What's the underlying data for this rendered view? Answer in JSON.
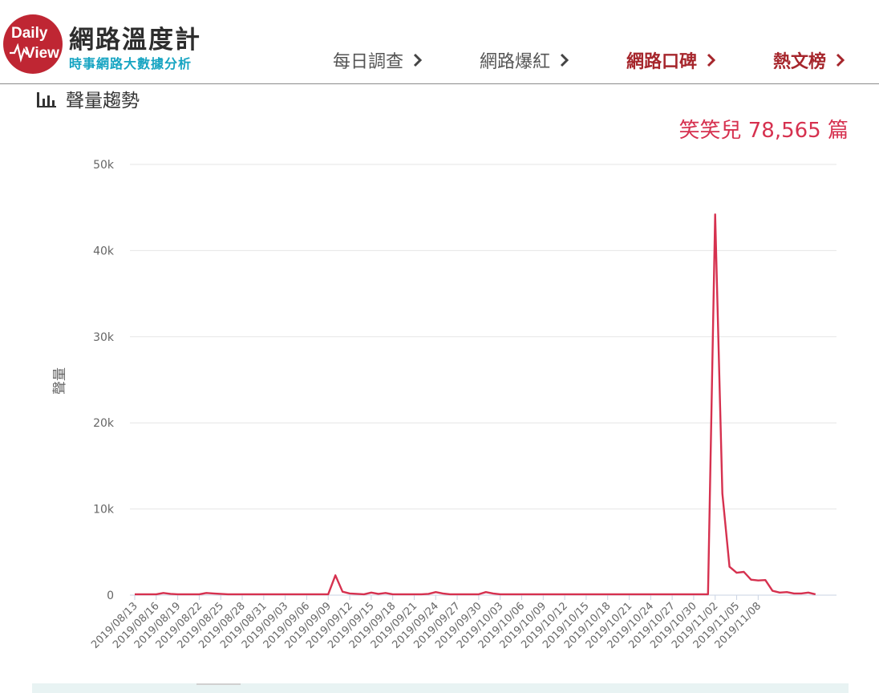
{
  "brand": {
    "logo_line1": "Daily",
    "logo_line2": "View",
    "title": "網路溫度計",
    "subtitle": "時事網路大數據分析"
  },
  "nav": [
    {
      "label": "每日調查",
      "style": "plain"
    },
    {
      "label": "網路爆紅",
      "style": "plain"
    },
    {
      "label": "網路口碑",
      "style": "accent"
    },
    {
      "label": "熱文榜",
      "style": "accent"
    }
  ],
  "section": {
    "title": "聲量趨勢",
    "icon": "bar-chart-icon"
  },
  "summary": {
    "name": "笑笑兒",
    "count": "78,565",
    "unit": "篇"
  },
  "colors": {
    "line": "#d6314f",
    "accent": "#a6262c",
    "brand_red": "#bf2633",
    "brand_blue": "#16a4c2"
  },
  "chart_data": {
    "type": "line",
    "title": "",
    "xlabel": "",
    "ylabel": "聲量",
    "ylim": [
      0,
      50000
    ],
    "yticks": [
      0,
      10000,
      20000,
      30000,
      40000,
      50000
    ],
    "ytick_labels": [
      "0",
      "10k",
      "20k",
      "30k",
      "40k",
      "50k"
    ],
    "grid": true,
    "x_tick_labels": [
      "2019/08/13",
      "2019/08/16",
      "2019/08/19",
      "2019/08/22",
      "2019/08/25",
      "2019/08/28",
      "2019/08/31",
      "2019/09/03",
      "2019/09/06",
      "2019/09/09",
      "2019/09/12",
      "2019/09/15",
      "2019/09/18",
      "2019/09/21",
      "2019/09/24",
      "2019/09/27",
      "2019/09/30",
      "2019/10/03",
      "2019/10/06",
      "2019/10/09",
      "2019/10/12",
      "2019/10/15",
      "2019/10/18",
      "2019/10/21",
      "2019/10/24",
      "2019/10/27",
      "2019/10/30",
      "2019/11/02",
      "2019/11/05",
      "2019/11/08"
    ],
    "series": [
      {
        "values": [
          100,
          100,
          100,
          100,
          250,
          150,
          100,
          100,
          100,
          100,
          250,
          200,
          150,
          100,
          100,
          100,
          100,
          100,
          100,
          100,
          100,
          100,
          100,
          100,
          100,
          100,
          100,
          100,
          2300,
          400,
          200,
          150,
          100,
          300,
          150,
          250,
          100,
          100,
          100,
          100,
          100,
          150,
          350,
          200,
          100,
          100,
          100,
          100,
          100,
          350,
          200,
          100,
          100,
          100,
          100,
          100,
          100,
          100,
          100,
          100,
          100,
          100,
          100,
          100,
          100,
          100,
          100,
          100,
          100,
          100,
          100,
          100,
          100,
          100,
          100,
          100,
          100,
          100,
          100,
          100,
          100,
          44200,
          11800,
          3300,
          2600,
          2700,
          1800,
          1700,
          1750,
          500,
          300,
          350,
          200,
          200,
          300,
          100
        ]
      }
    ]
  }
}
